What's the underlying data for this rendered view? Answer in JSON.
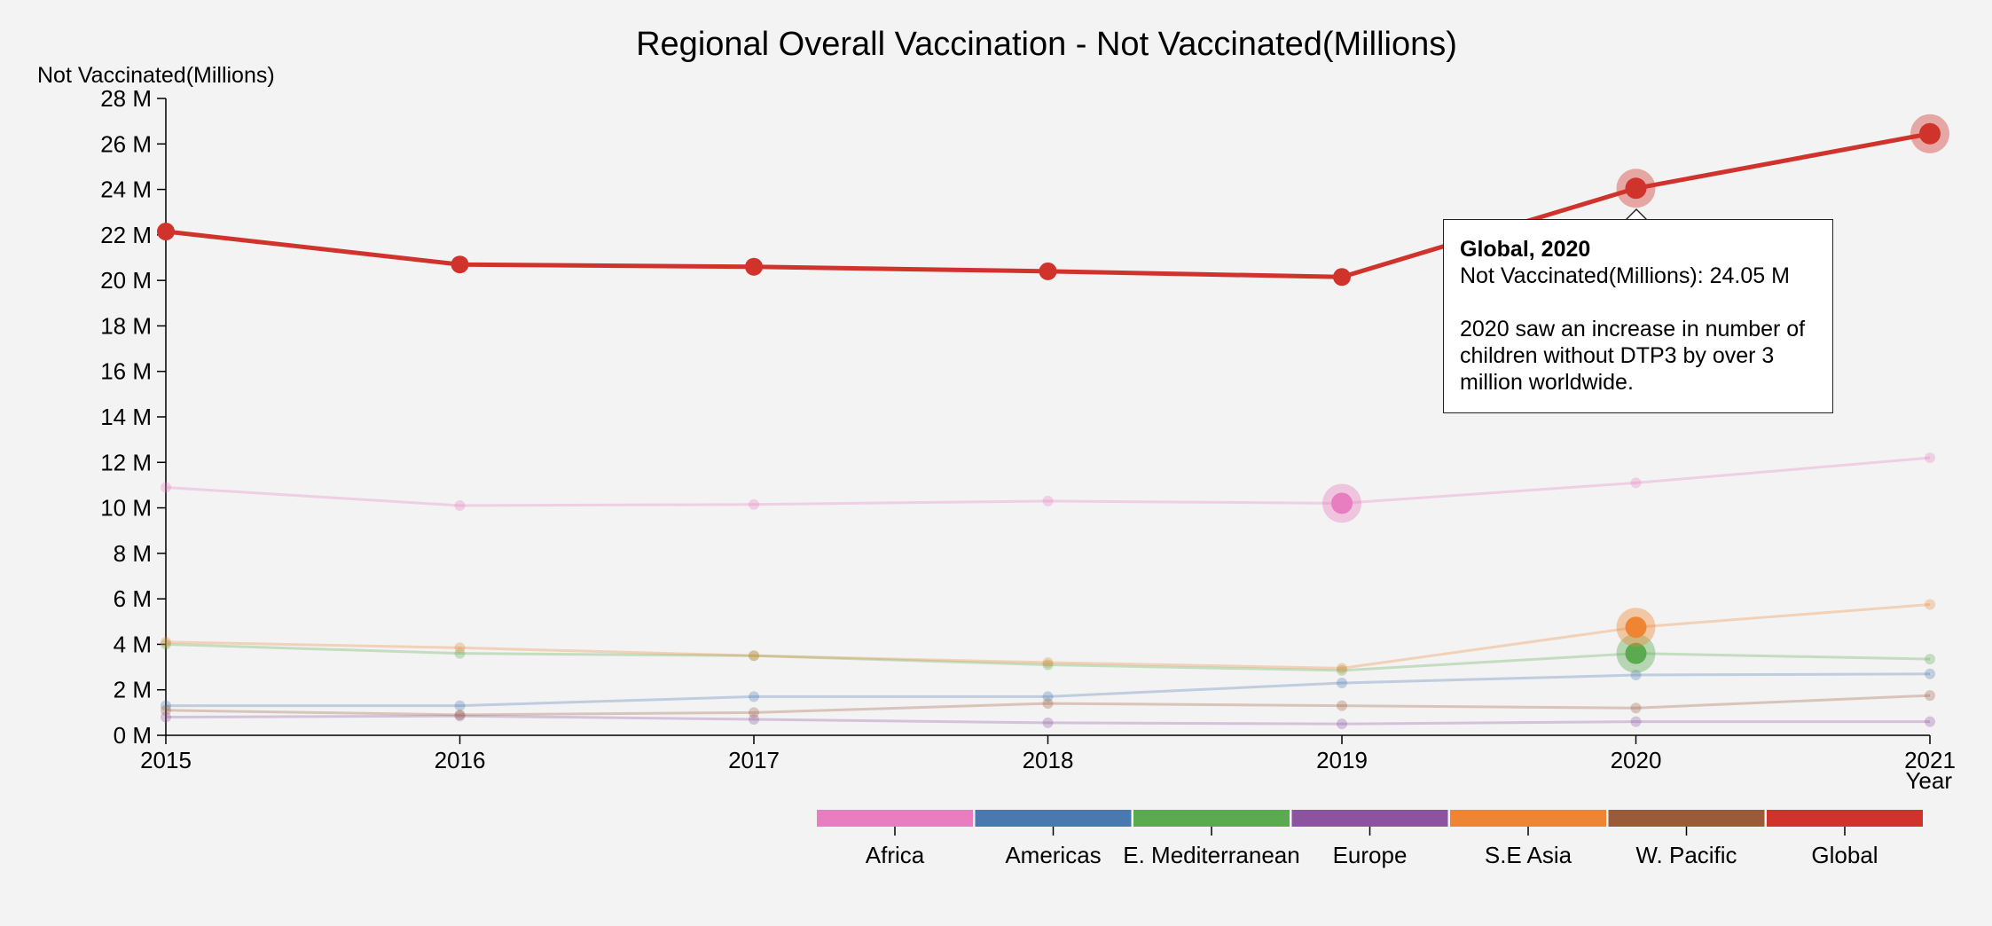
{
  "chart_data": {
    "type": "line",
    "title": "Regional Overall Vaccination - Not Vaccinated(Millions)",
    "ylabel": "Not Vaccinated(Millions)",
    "xlabel": "Year",
    "x": [
      2015,
      2016,
      2017,
      2018,
      2019,
      2020,
      2021
    ],
    "ylim": [
      0,
      28
    ],
    "yticks": [
      "0 M",
      "2 M",
      "4 M",
      "6 M",
      "8 M",
      "10 M",
      "12 M",
      "14 M",
      "16 M",
      "18 M",
      "20 M",
      "22 M",
      "24 M",
      "26 M",
      "28 M"
    ],
    "grid": false,
    "series": [
      {
        "name": "Africa",
        "color": "#e87dbf",
        "values": [
          10.9,
          10.1,
          10.15,
          10.3,
          10.2,
          11.1,
          12.2
        ],
        "highlight": [
          4
        ]
      },
      {
        "name": "Americas",
        "color": "#4a78b0",
        "values": [
          1.3,
          1.3,
          1.7,
          1.7,
          2.3,
          2.65,
          2.7
        ],
        "highlight": []
      },
      {
        "name": "E. Mediterranean",
        "color": "#5aab4f",
        "values": [
          4.0,
          3.6,
          3.5,
          3.1,
          2.85,
          3.6,
          3.35
        ],
        "highlight": [
          5
        ]
      },
      {
        "name": "Europe",
        "color": "#8b53a0",
        "values": [
          0.8,
          0.85,
          0.7,
          0.55,
          0.5,
          0.6,
          0.6
        ],
        "highlight": []
      },
      {
        "name": "S.E Asia",
        "color": "#ef8532",
        "values": [
          4.1,
          3.85,
          3.5,
          3.2,
          2.95,
          4.75,
          5.75
        ],
        "highlight": [
          5
        ]
      },
      {
        "name": "W. Pacific",
        "color": "#9b5a38",
        "values": [
          1.1,
          0.9,
          1.0,
          1.4,
          1.3,
          1.2,
          1.75
        ],
        "highlight": []
      },
      {
        "name": "Global",
        "color": "#d0332c",
        "values": [
          22.15,
          20.7,
          20.6,
          20.4,
          20.15,
          24.05,
          26.45
        ],
        "highlight": [
          5,
          6
        ],
        "emphasized": true
      }
    ],
    "legend": [
      "Africa",
      "Americas",
      "E. Mediterranean",
      "Europe",
      "S.E Asia",
      "W. Pacific",
      "Global"
    ],
    "legend_placement": "bottom-right"
  },
  "tooltip": {
    "header": "Global, 2020",
    "value_line": "Not Vaccinated(Millions): 24.05 M",
    "note": "2020 saw an increase in number of children without DTP3 by over 3 million worldwide."
  }
}
